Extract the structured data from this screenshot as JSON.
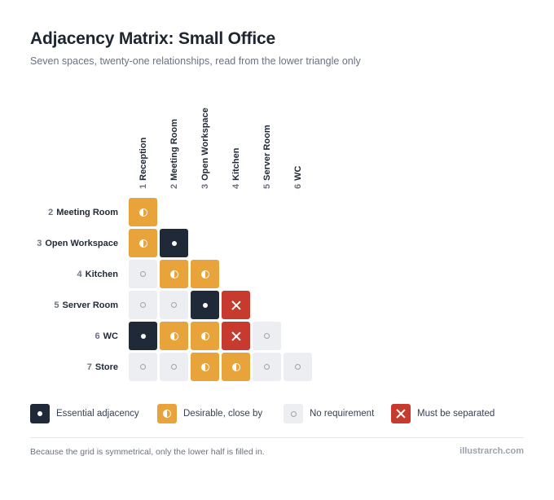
{
  "header": {
    "title": "Adjacency Matrix: Small Office",
    "subtitle": "Seven spaces, twenty-one relationships, read from the lower triangle only"
  },
  "chart_data": {
    "type": "heatmap",
    "columns": [
      {
        "num": "1",
        "name": "Reception"
      },
      {
        "num": "2",
        "name": "Meeting Room"
      },
      {
        "num": "3",
        "name": "Open Workspace"
      },
      {
        "num": "4",
        "name": "Kitchen"
      },
      {
        "num": "5",
        "name": "Server Room"
      },
      {
        "num": "6",
        "name": "WC"
      }
    ],
    "rows": [
      {
        "num": "2",
        "name": "Meeting Room",
        "values": [
          "desirable"
        ]
      },
      {
        "num": "3",
        "name": "Open Workspace",
        "values": [
          "desirable",
          "essential"
        ]
      },
      {
        "num": "4",
        "name": "Kitchen",
        "values": [
          "none",
          "desirable",
          "desirable"
        ]
      },
      {
        "num": "5",
        "name": "Server Room",
        "values": [
          "none",
          "none",
          "essential",
          "separate"
        ]
      },
      {
        "num": "6",
        "name": "WC",
        "values": [
          "essential",
          "desirable",
          "desirable",
          "separate",
          "none"
        ]
      },
      {
        "num": "7",
        "name": "Store",
        "values": [
          "none",
          "none",
          "desirable",
          "desirable",
          "none",
          "none"
        ]
      }
    ]
  },
  "colors": {
    "essential": "#1f2937",
    "desirable": "#e8a33a",
    "none": "#eceef1",
    "separate": "#c73b2f"
  },
  "legend": [
    {
      "key": "essential",
      "label": "Essential adjacency"
    },
    {
      "key": "desirable",
      "label": "Desirable, close by"
    },
    {
      "key": "none",
      "label": "No requirement"
    },
    {
      "key": "separate",
      "label": "Must be separated"
    }
  ],
  "footer": {
    "note": "Because the grid is symmetrical, only the lower half is filled in.",
    "brand": "illustrarch.com"
  }
}
